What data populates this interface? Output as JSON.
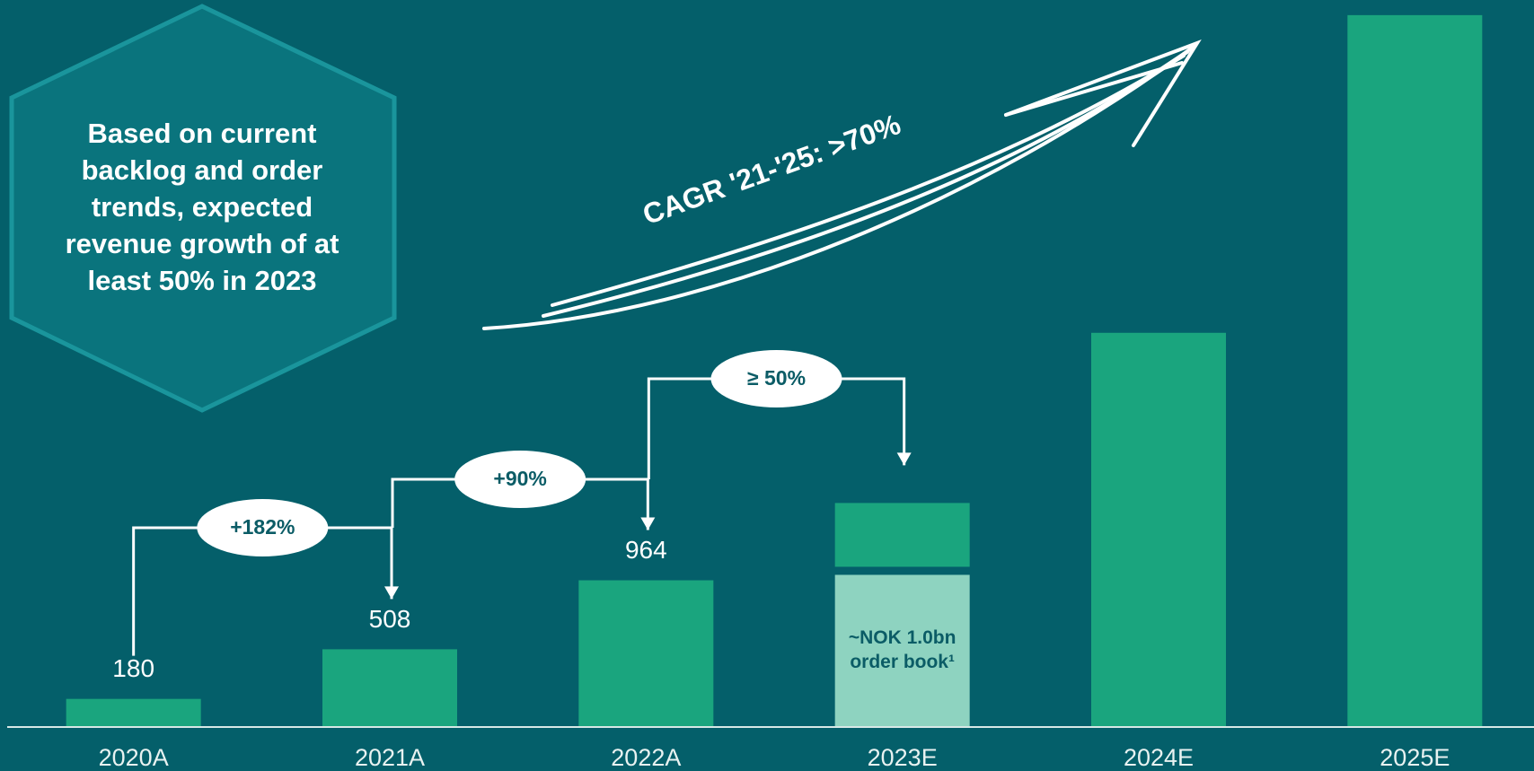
{
  "chart_data": {
    "type": "bar",
    "callout": "Based on current backlog and order trends, expected revenue growth of at least 50% in 2023",
    "trend_label": "CAGR '21-'25: >70%",
    "categories": [
      "2020A",
      "2021A",
      "2022A",
      "2023E",
      "2024E",
      "2025E"
    ],
    "series": [
      {
        "name": "~NOK 1.0bn order book¹",
        "color": "#8ed3c0",
        "values": [
          null,
          null,
          null,
          1000,
          null,
          null
        ]
      },
      {
        "color": "#1aa57e",
        "values": [
          180,
          508,
          964,
          475,
          2600,
          4700
        ],
        "value_labels": [
          "180",
          "508",
          "964",
          null,
          null,
          null
        ]
      }
    ],
    "growth_labels": [
      "+182%",
      "+90%",
      "≥ 50%"
    ],
    "ylim": [
      0,
      4800
    ]
  }
}
